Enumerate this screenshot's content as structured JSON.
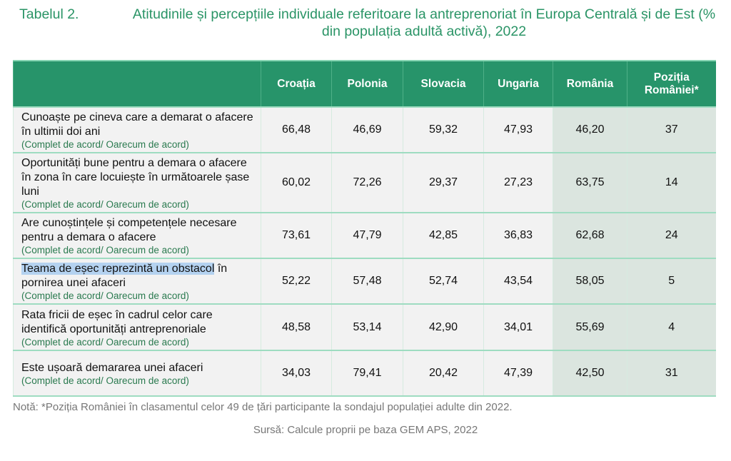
{
  "title": {
    "label": "Tabelul 2.",
    "text": "Atitudinile și percepțiile individuale referitoare la antreprenoriat în Europa Centrală și de Est (% din populația adultă activă), 2022"
  },
  "headers": [
    "",
    "Croația",
    "Polonia",
    "Slovacia",
    "Ungaria",
    "România",
    "Poziția României*"
  ],
  "rows": [
    {
      "label": "Cunoaște pe cineva care a demarat o afacere în ultimii doi ani",
      "highlight": "",
      "sub": "(Complet de acord/ Oarecum de acord)",
      "values": [
        "66,48",
        "46,69",
        "59,32",
        "47,93",
        "46,20",
        "37"
      ]
    },
    {
      "label": "Oportunități bune pentru a demara o afacere în zona în care locuiește în următoarele șase luni",
      "highlight": "",
      "sub": "(Complet de acord/ Oarecum de acord)",
      "values": [
        "60,02",
        "72,26",
        "29,37",
        "27,23",
        "63,75",
        "14"
      ]
    },
    {
      "label": "Are cunoștințele și competențele necesare pentru a demara o afacere",
      "highlight": "",
      "sub": "(Complet de acord/ Oarecum de acord)",
      "values": [
        "73,61",
        "47,79",
        "42,85",
        "36,83",
        "62,68",
        "24"
      ]
    },
    {
      "label": " în pornirea unei afaceri",
      "highlight": "Teama de eșec reprezintă un obstacol",
      "sub": "(Complet de acord/ Oarecum de acord)",
      "values": [
        "52,22",
        "57,48",
        "52,74",
        "43,54",
        "58,05",
        "5"
      ]
    },
    {
      "label": "Rata fricii de eșec în cadrul celor care identifică oportunități antreprenoriale",
      "highlight": "",
      "sub": "(Complet de acord/ Oarecum de acord)",
      "values": [
        "48,58",
        "53,14",
        "42,90",
        "34,01",
        "55,69",
        "4"
      ]
    },
    {
      "label": "Este ușoară demararea unei afaceri",
      "highlight": "",
      "sub": "(Complet de acord/ Oarecum de acord)",
      "values": [
        "34,03",
        "79,41",
        "20,42",
        "47,39",
        "42,50",
        "31"
      ]
    }
  ],
  "note": "Notă: *Poziția României în clasamentul celor 49 de țări participante la sondajul populației adulte din 2022.",
  "source": "Sursă: Calcule proprii pe baza GEM APS, 2022"
}
